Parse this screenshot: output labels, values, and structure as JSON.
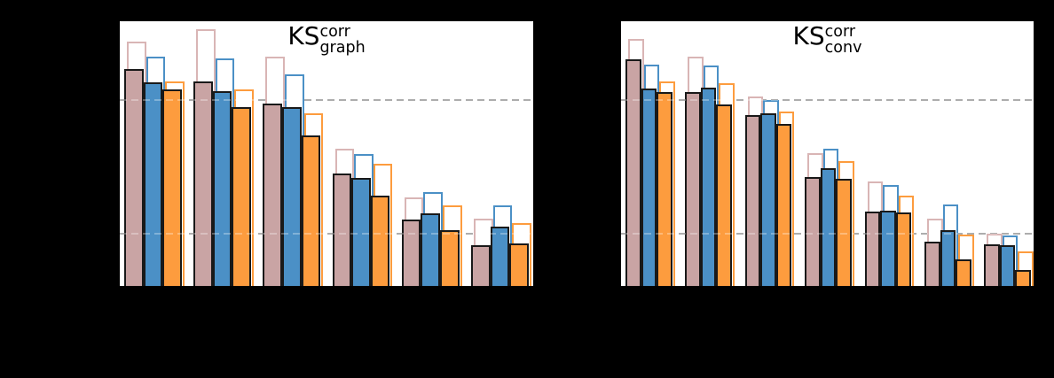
{
  "figure": {
    "background": "#000000",
    "note": "Axis tick labels and x-axis category labels are not visible in the image (black text on black background); only the two white plot panels, bars, titles and dashed reference lines are visible.",
    "colors": {
      "mauve_fill": "#c9a4a4",
      "mauve_outline": "#d9b5b5",
      "blue": "#4b90c6",
      "orange": "#fd9c3e",
      "bar_edge": "#191919",
      "gridline": "#8a8a8a",
      "panel_background": "#ffffff",
      "panel_border": "#000000"
    }
  },
  "chart_data": [
    {
      "type": "bar",
      "panel": "left",
      "title": {
        "base": "KS",
        "sup": "corr",
        "sub": "graph"
      },
      "categories": [
        "",
        "",
        "",
        "",
        "",
        ""
      ],
      "n_groups": 6,
      "xlabel": "",
      "ylabel": "",
      "units": "fraction of plot height (y tick labels not visible)",
      "ylim": [
        0,
        1
      ],
      "gridlines_y": [
        0.198,
        0.703
      ],
      "grid": "two dashed horizontal reference lines",
      "legend": "none visible",
      "series": [
        {
          "name": "mauve-outline",
          "style": "outline",
          "color": "#d9b5b5",
          "values": [
            0.924,
            0.97,
            0.866,
            0.517,
            0.336,
            0.255
          ]
        },
        {
          "name": "blue-outline",
          "style": "outline",
          "color": "#4b90c6",
          "values": [
            0.866,
            0.858,
            0.8,
            0.497,
            0.354,
            0.303
          ]
        },
        {
          "name": "orange-outline",
          "style": "outline",
          "color": "#fd9c3e",
          "values": [
            0.773,
            0.743,
            0.651,
            0.462,
            0.305,
            0.239
          ]
        },
        {
          "name": "mauve-filled",
          "style": "filled",
          "color": "#c9a4a4",
          "values": [
            0.819,
            0.773,
            0.69,
            0.424,
            0.25,
            0.154
          ]
        },
        {
          "name": "blue-filled",
          "style": "filled",
          "color": "#4b90c6",
          "values": [
            0.77,
            0.737,
            0.674,
            0.407,
            0.273,
            0.223
          ]
        },
        {
          "name": "orange-filled",
          "style": "filled",
          "color": "#fd9c3e",
          "values": [
            0.743,
            0.677,
            0.569,
            0.341,
            0.211,
            0.159
          ]
        }
      ]
    },
    {
      "type": "bar",
      "panel": "right",
      "title": {
        "base": "KS",
        "sup": "corr",
        "sub": "conv"
      },
      "categories": [
        "",
        "",
        "",
        "",
        "",
        "",
        ""
      ],
      "n_groups": 7,
      "xlabel": "",
      "ylabel": "",
      "units": "fraction of plot height (y tick labels not visible)",
      "ylim": [
        0,
        1
      ],
      "gridlines_y": [
        0.198,
        0.703
      ],
      "grid": "two dashed horizontal reference lines",
      "legend": "none visible",
      "series": [
        {
          "name": "mauve-outline",
          "style": "outline",
          "color": "#d9b5b5",
          "values": [
            0.932,
            0.866,
            0.717,
            0.501,
            0.393,
            0.253,
            0.196
          ]
        },
        {
          "name": "blue-outline",
          "style": "outline",
          "color": "#4b90c6",
          "values": [
            0.836,
            0.833,
            0.701,
            0.517,
            0.38,
            0.308,
            0.19
          ]
        },
        {
          "name": "orange-outline",
          "style": "outline",
          "color": "#fd9c3e",
          "values": [
            0.772,
            0.765,
            0.66,
            0.47,
            0.341,
            0.195,
            0.129
          ]
        },
        {
          "name": "mauve-filled",
          "style": "filled",
          "color": "#c9a4a4",
          "values": [
            0.855,
            0.734,
            0.644,
            0.41,
            0.281,
            0.168,
            0.156
          ]
        },
        {
          "name": "blue-filled",
          "style": "filled",
          "color": "#4b90c6",
          "values": [
            0.745,
            0.75,
            0.651,
            0.446,
            0.283,
            0.211,
            0.154
          ]
        },
        {
          "name": "orange-filled",
          "style": "filled",
          "color": "#fd9c3e",
          "values": [
            0.732,
            0.684,
            0.611,
            0.404,
            0.278,
            0.102,
            0.06
          ]
        }
      ]
    }
  ]
}
